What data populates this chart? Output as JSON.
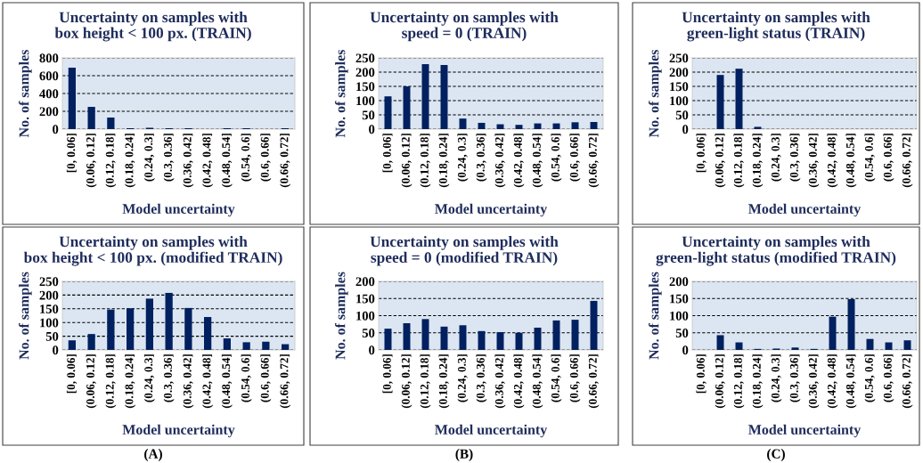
{
  "chart_data": [
    {
      "type": "bar",
      "title": "Uncertainty on samples with\nbox height < 100 px. (TRAIN)",
      "xlabel": "Model uncertainty",
      "ylabel": "No. of samples",
      "categories": [
        "[0, 0.06]",
        "(0.06, 0.12]",
        "(0.12, 0.18]",
        "(0.18, 0.24]",
        "(0.24, 0.3]",
        "(0.3, 0.36]",
        "(0.36, 0.42]",
        "(0.42, 0.48]",
        "(0.48, 0.54]",
        "(0.54, 0.6]",
        "(0.6, 0.66]",
        "(0.66, 0.72]"
      ],
      "values": [
        690,
        250,
        130,
        10,
        15,
        10,
        10,
        0,
        10,
        10,
        0,
        10
      ],
      "color": "#002060",
      "ylim": [
        0,
        800
      ],
      "yticks": [
        0,
        200,
        400,
        600,
        800
      ],
      "grid": "y",
      "legend": false
    },
    {
      "type": "bar",
      "title": "Uncertainty on samples with\nspeed = 0 (TRAIN)",
      "xlabel": "Model uncertainty",
      "ylabel": "No. of samples",
      "categories": [
        "[0, 0.06]",
        "(0.06, 0.12]",
        "(0.12, 0.18]",
        "(0.18, 0.24]",
        "(0.24, 0.3]",
        "(0.3, 0.36]",
        "(0.36, 0.42]",
        "(0.42, 0.48]",
        "(0.48, 0.54]",
        "(0.54, 0.6]",
        "(0.6, 0.66]",
        "(0.66, 0.72]"
      ],
      "values": [
        115,
        150,
        228,
        225,
        37,
        22,
        17,
        15,
        20,
        20,
        24,
        25
      ],
      "color": "#002060",
      "ylim": [
        0,
        250
      ],
      "yticks": [
        0,
        50,
        100,
        150,
        200,
        250
      ],
      "grid": "y",
      "legend": false
    },
    {
      "type": "bar",
      "title": "Uncertainty on samples with\ngreen-light status (TRAIN)",
      "xlabel": "Model uncertainty",
      "ylabel": "No. of samples",
      "categories": [
        "[0, 0.06]",
        "(0.06, 0.12]",
        "(0.12, 0.18]",
        "(0.18, 0.24]",
        "(0.24, 0.3]",
        "(0.3, 0.36]",
        "(0.36, 0.42]",
        "(0.42, 0.48]",
        "(0.48, 0.54]",
        "(0.54, 0.6]",
        "(0.6, 0.66]",
        "(0.66, 0.72]"
      ],
      "values": [
        0,
        190,
        212,
        8,
        0,
        0,
        0,
        0,
        0,
        0,
        0,
        0
      ],
      "color": "#002060",
      "ylim": [
        0,
        250
      ],
      "yticks": [
        0,
        50,
        100,
        150,
        200,
        250
      ],
      "grid": "y",
      "legend": false
    },
    {
      "type": "bar",
      "title": "Uncertainty on samples with\nbox height < 100 px. (modified TRAIN)",
      "xlabel": "Model uncertainty",
      "ylabel": "No. of samples",
      "categories": [
        "[0, 0.06]",
        "(0.06, 0.12]",
        "(0.12, 0.18]",
        "(0.18, 0.24]",
        "(0.24, 0.3]",
        "(0.3, 0.36]",
        "(0.36, 0.42]",
        "(0.42, 0.48]",
        "(0.48, 0.54]",
        "(0.54, 0.6]",
        "(0.6, 0.66]",
        "(0.66, 0.72]"
      ],
      "values": [
        35,
        58,
        147,
        152,
        187,
        208,
        153,
        120,
        42,
        28,
        30,
        21
      ],
      "color": "#002060",
      "ylim": [
        0,
        250
      ],
      "yticks": [
        0,
        50,
        100,
        150,
        200,
        250
      ],
      "grid": "y",
      "legend": false,
      "annotations": [
        "(A)"
      ]
    },
    {
      "type": "bar",
      "title": "Uncertainty on samples with\nspeed = 0 (modified TRAIN)",
      "xlabel": "Model uncertainty",
      "ylabel": "No. of samples",
      "categories": [
        "[0, 0.06]",
        "(0.06, 0.12]",
        "(0.12, 0.18]",
        "(0.18, 0.24]",
        "(0.24, 0.3]",
        "(0.3, 0.36]",
        "(0.36, 0.42]",
        "(0.42, 0.48]",
        "(0.48, 0.54]",
        "(0.54, 0.6]",
        "(0.6, 0.66]",
        "(0.66, 0.72]"
      ],
      "values": [
        62,
        78,
        90,
        68,
        72,
        55,
        52,
        50,
        65,
        86,
        88,
        143
      ],
      "color": "#002060",
      "ylim": [
        0,
        200
      ],
      "yticks": [
        0,
        50,
        100,
        150,
        200
      ],
      "grid": "y",
      "legend": false,
      "annotations": [
        "(B)"
      ]
    },
    {
      "type": "bar",
      "title": "Uncertainty on samples with\ngreen-light status (modified TRAIN)",
      "xlabel": "Model uncertainty",
      "ylabel": "No. of samples",
      "categories": [
        "[0, 0.06]",
        "(0.06, 0.12]",
        "(0.12, 0.18]",
        "(0.18, 0.24]",
        "(0.24, 0.3]",
        "(0.3, 0.36]",
        "(0.36, 0.42]",
        "(0.42, 0.48]",
        "(0.48, 0.54]",
        "(0.54, 0.6]",
        "(0.6, 0.66]",
        "(0.66, 0.72]"
      ],
      "values": [
        0,
        43,
        22,
        3,
        4,
        7,
        3,
        97,
        148,
        32,
        22,
        28
      ],
      "color": "#002060",
      "ylim": [
        0,
        200
      ],
      "yticks": [
        0,
        50,
        100,
        150,
        200
      ],
      "grid": "y",
      "legend": false,
      "annotations": [
        "(C)"
      ]
    }
  ]
}
